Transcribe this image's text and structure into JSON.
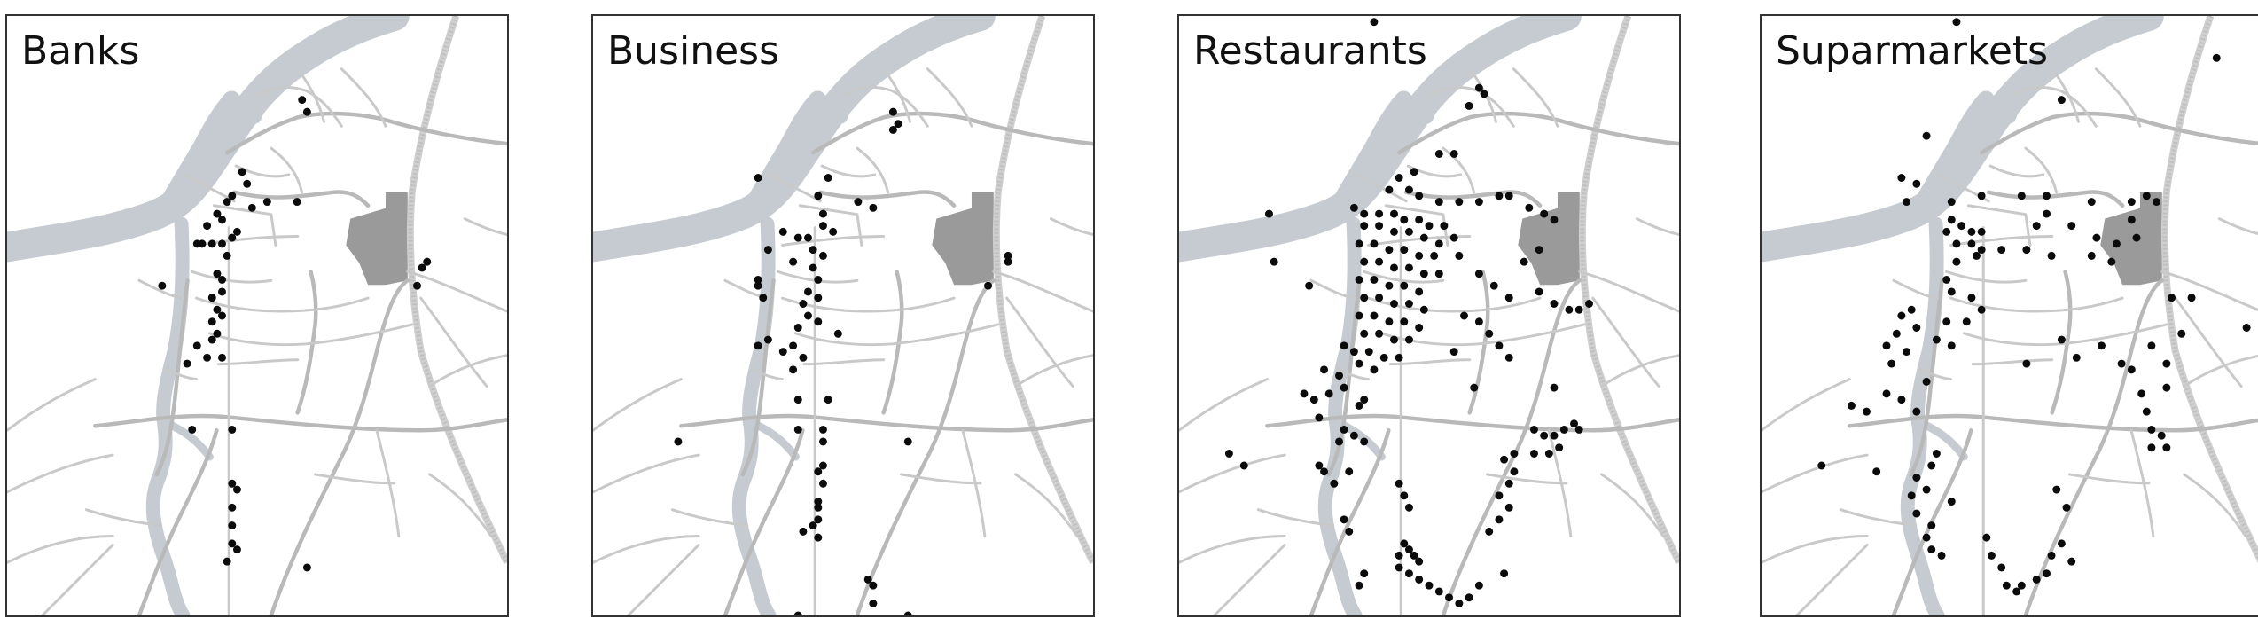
{
  "colors": {
    "river": "#c5cbd0",
    "road": "#c9c9c9",
    "district": "#9a9a9a",
    "poi": "#0b0b0b"
  },
  "panels": [
    {
      "title": "Banks",
      "points": [
        [
          0.59,
          0.14
        ],
        [
          0.6,
          0.16
        ],
        [
          0.47,
          0.26
        ],
        [
          0.48,
          0.28
        ],
        [
          0.45,
          0.3
        ],
        [
          0.44,
          0.31
        ],
        [
          0.42,
          0.33
        ],
        [
          0.43,
          0.34
        ],
        [
          0.4,
          0.35
        ],
        [
          0.38,
          0.38
        ],
        [
          0.39,
          0.38
        ],
        [
          0.41,
          0.38
        ],
        [
          0.43,
          0.38
        ],
        [
          0.45,
          0.37
        ],
        [
          0.46,
          0.36
        ],
        [
          0.44,
          0.4
        ],
        [
          0.42,
          0.43
        ],
        [
          0.43,
          0.44
        ],
        [
          0.41,
          0.47
        ],
        [
          0.43,
          0.46
        ],
        [
          0.42,
          0.49
        ],
        [
          0.41,
          0.51
        ],
        [
          0.43,
          0.5
        ],
        [
          0.42,
          0.53
        ],
        [
          0.41,
          0.54
        ],
        [
          0.38,
          0.55
        ],
        [
          0.4,
          0.57
        ],
        [
          0.43,
          0.57
        ],
        [
          0.36,
          0.58
        ],
        [
          0.31,
          0.45
        ],
        [
          0.49,
          0.32
        ],
        [
          0.52,
          0.31
        ],
        [
          0.58,
          0.31
        ],
        [
          0.84,
          0.41
        ],
        [
          0.82,
          0.45
        ],
        [
          0.83,
          0.42
        ],
        [
          0.37,
          0.69
        ],
        [
          0.45,
          0.69
        ],
        [
          0.45,
          0.78
        ],
        [
          0.46,
          0.79
        ],
        [
          0.45,
          0.82
        ],
        [
          0.45,
          0.85
        ],
        [
          0.45,
          0.88
        ],
        [
          0.46,
          0.89
        ],
        [
          0.44,
          0.91
        ],
        [
          0.6,
          0.92
        ]
      ]
    },
    {
      "title": "Business",
      "points": [
        [
          0.6,
          0.16
        ],
        [
          0.61,
          0.18
        ],
        [
          0.6,
          0.19
        ],
        [
          0.33,
          0.27
        ],
        [
          0.47,
          0.27
        ],
        [
          0.45,
          0.3
        ],
        [
          0.46,
          0.33
        ],
        [
          0.41,
          0.37
        ],
        [
          0.43,
          0.37
        ],
        [
          0.46,
          0.35
        ],
        [
          0.48,
          0.36
        ],
        [
          0.44,
          0.39
        ],
        [
          0.46,
          0.4
        ],
        [
          0.44,
          0.42
        ],
        [
          0.45,
          0.44
        ],
        [
          0.43,
          0.46
        ],
        [
          0.45,
          0.47
        ],
        [
          0.42,
          0.48
        ],
        [
          0.43,
          0.5
        ],
        [
          0.45,
          0.51
        ],
        [
          0.41,
          0.52
        ],
        [
          0.4,
          0.55
        ],
        [
          0.38,
          0.56
        ],
        [
          0.35,
          0.54
        ],
        [
          0.38,
          0.36
        ],
        [
          0.35,
          0.39
        ],
        [
          0.33,
          0.44
        ],
        [
          0.33,
          0.45
        ],
        [
          0.34,
          0.47
        ],
        [
          0.4,
          0.41
        ],
        [
          0.53,
          0.31
        ],
        [
          0.56,
          0.32
        ],
        [
          0.49,
          0.53
        ],
        [
          0.42,
          0.57
        ],
        [
          0.4,
          0.59
        ],
        [
          0.33,
          0.55
        ],
        [
          0.41,
          0.64
        ],
        [
          0.47,
          0.64
        ],
        [
          0.41,
          0.69
        ],
        [
          0.46,
          0.69
        ],
        [
          0.46,
          0.71
        ],
        [
          0.46,
          0.75
        ],
        [
          0.45,
          0.76
        ],
        [
          0.46,
          0.78
        ],
        [
          0.45,
          0.81
        ],
        [
          0.45,
          0.82
        ],
        [
          0.45,
          0.84
        ],
        [
          0.44,
          0.85
        ],
        [
          0.45,
          0.87
        ],
        [
          0.42,
          0.86
        ],
        [
          0.17,
          0.71
        ],
        [
          0.63,
          0.71
        ],
        [
          0.55,
          0.94
        ],
        [
          0.56,
          0.95
        ],
        [
          0.56,
          0.98
        ],
        [
          0.63,
          1.0
        ],
        [
          0.41,
          1.0
        ],
        [
          0.83,
          0.4
        ],
        [
          0.83,
          0.41
        ],
        [
          0.79,
          0.45
        ]
      ]
    },
    {
      "title": "Restaurants",
      "points": [
        [
          0.39,
          0.01
        ],
        [
          0.6,
          0.12
        ],
        [
          0.61,
          0.13
        ],
        [
          0.58,
          0.15
        ],
        [
          0.55,
          0.23
        ],
        [
          0.52,
          0.23
        ],
        [
          0.47,
          0.26
        ],
        [
          0.44,
          0.27
        ],
        [
          0.42,
          0.29
        ],
        [
          0.46,
          0.29
        ],
        [
          0.48,
          0.3
        ],
        [
          0.52,
          0.31
        ],
        [
          0.56,
          0.31
        ],
        [
          0.6,
          0.31
        ],
        [
          0.64,
          0.3
        ],
        [
          0.66,
          0.3
        ],
        [
          0.7,
          0.32
        ],
        [
          0.73,
          0.33
        ],
        [
          0.75,
          0.34
        ],
        [
          0.35,
          0.32
        ],
        [
          0.37,
          0.33
        ],
        [
          0.4,
          0.33
        ],
        [
          0.43,
          0.33
        ],
        [
          0.45,
          0.34
        ],
        [
          0.48,
          0.34
        ],
        [
          0.5,
          0.35
        ],
        [
          0.53,
          0.35
        ],
        [
          0.37,
          0.35
        ],
        [
          0.4,
          0.35
        ],
        [
          0.43,
          0.36
        ],
        [
          0.46,
          0.36
        ],
        [
          0.49,
          0.37
        ],
        [
          0.52,
          0.38
        ],
        [
          0.55,
          0.37
        ],
        [
          0.36,
          0.38
        ],
        [
          0.39,
          0.38
        ],
        [
          0.42,
          0.39
        ],
        [
          0.45,
          0.39
        ],
        [
          0.48,
          0.4
        ],
        [
          0.51,
          0.4
        ],
        [
          0.37,
          0.41
        ],
        [
          0.4,
          0.41
        ],
        [
          0.43,
          0.42
        ],
        [
          0.46,
          0.42
        ],
        [
          0.49,
          0.43
        ],
        [
          0.52,
          0.43
        ],
        [
          0.36,
          0.44
        ],
        [
          0.39,
          0.44
        ],
        [
          0.42,
          0.45
        ],
        [
          0.45,
          0.45
        ],
        [
          0.48,
          0.46
        ],
        [
          0.37,
          0.47
        ],
        [
          0.4,
          0.47
        ],
        [
          0.43,
          0.48
        ],
        [
          0.46,
          0.48
        ],
        [
          0.49,
          0.49
        ],
        [
          0.36,
          0.5
        ],
        [
          0.39,
          0.5
        ],
        [
          0.42,
          0.51
        ],
        [
          0.45,
          0.51
        ],
        [
          0.48,
          0.52
        ],
        [
          0.37,
          0.53
        ],
        [
          0.4,
          0.53
        ],
        [
          0.43,
          0.54
        ],
        [
          0.46,
          0.54
        ],
        [
          0.35,
          0.56
        ],
        [
          0.38,
          0.56
        ],
        [
          0.41,
          0.57
        ],
        [
          0.44,
          0.57
        ],
        [
          0.36,
          0.58
        ],
        [
          0.39,
          0.59
        ],
        [
          0.33,
          0.55
        ],
        [
          0.32,
          0.6
        ],
        [
          0.29,
          0.59
        ],
        [
          0.18,
          0.33
        ],
        [
          0.19,
          0.41
        ],
        [
          0.26,
          0.45
        ],
        [
          0.56,
          0.4
        ],
        [
          0.6,
          0.43
        ],
        [
          0.63,
          0.45
        ],
        [
          0.66,
          0.47
        ],
        [
          0.72,
          0.46
        ],
        [
          0.75,
          0.48
        ],
        [
          0.78,
          0.49
        ],
        [
          0.8,
          0.49
        ],
        [
          0.82,
          0.48
        ],
        [
          0.69,
          0.41
        ],
        [
          0.72,
          0.39
        ],
        [
          0.57,
          0.5
        ],
        [
          0.6,
          0.51
        ],
        [
          0.62,
          0.53
        ],
        [
          0.64,
          0.55
        ],
        [
          0.66,
          0.57
        ],
        [
          0.55,
          0.56
        ],
        [
          0.25,
          0.63
        ],
        [
          0.27,
          0.64
        ],
        [
          0.3,
          0.63
        ],
        [
          0.33,
          0.62
        ],
        [
          0.28,
          0.67
        ],
        [
          0.32,
          0.71
        ],
        [
          0.35,
          0.7
        ],
        [
          0.33,
          0.69
        ],
        [
          0.36,
          0.65
        ],
        [
          0.37,
          0.64
        ],
        [
          0.34,
          0.76
        ],
        [
          0.29,
          0.76
        ],
        [
          0.28,
          0.75
        ],
        [
          0.31,
          0.78
        ],
        [
          0.33,
          0.84
        ],
        [
          0.34,
          0.86
        ],
        [
          0.1,
          0.73
        ],
        [
          0.13,
          0.75
        ],
        [
          0.37,
          0.71
        ],
        [
          0.44,
          0.78
        ],
        [
          0.45,
          0.8
        ],
        [
          0.46,
          0.82
        ],
        [
          0.45,
          0.88
        ],
        [
          0.46,
          0.89
        ],
        [
          0.44,
          0.9
        ],
        [
          0.47,
          0.9
        ],
        [
          0.48,
          0.91
        ],
        [
          0.44,
          0.92
        ],
        [
          0.46,
          0.93
        ],
        [
          0.48,
          0.94
        ],
        [
          0.5,
          0.95
        ],
        [
          0.52,
          0.96
        ],
        [
          0.54,
          0.97
        ],
        [
          0.56,
          0.98
        ],
        [
          0.58,
          0.97
        ],
        [
          0.6,
          0.95
        ],
        [
          0.65,
          0.93
        ],
        [
          0.37,
          0.93
        ],
        [
          0.36,
          0.95
        ],
        [
          0.71,
          0.69
        ],
        [
          0.73,
          0.7
        ],
        [
          0.75,
          0.7
        ],
        [
          0.77,
          0.69
        ],
        [
          0.79,
          0.68
        ],
        [
          0.8,
          0.69
        ],
        [
          0.76,
          0.72
        ],
        [
          0.74,
          0.73
        ],
        [
          0.71,
          0.73
        ],
        [
          0.67,
          0.73
        ],
        [
          0.65,
          0.74
        ],
        [
          0.67,
          0.76
        ],
        [
          0.66,
          0.78
        ],
        [
          0.64,
          0.8
        ],
        [
          0.66,
          0.82
        ],
        [
          0.64,
          0.84
        ],
        [
          0.62,
          0.86
        ],
        [
          0.75,
          0.62
        ],
        [
          0.59,
          0.62
        ]
      ]
    },
    {
      "title": "Suparmarkets",
      "points": [
        [
          0.39,
          0.01
        ],
        [
          0.91,
          0.07
        ],
        [
          0.6,
          0.14
        ],
        [
          0.33,
          0.2
        ],
        [
          0.28,
          0.27
        ],
        [
          0.31,
          0.28
        ],
        [
          0.29,
          0.31
        ],
        [
          0.38,
          0.31
        ],
        [
          0.44,
          0.3
        ],
        [
          0.52,
          0.3
        ],
        [
          0.57,
          0.3
        ],
        [
          0.66,
          0.31
        ],
        [
          0.74,
          0.31
        ],
        [
          0.77,
          0.3
        ],
        [
          0.79,
          0.31
        ],
        [
          0.74,
          0.34
        ],
        [
          0.75,
          0.37
        ],
        [
          0.38,
          0.34
        ],
        [
          0.4,
          0.35
        ],
        [
          0.42,
          0.36
        ],
        [
          0.44,
          0.36
        ],
        [
          0.37,
          0.36
        ],
        [
          0.39,
          0.38
        ],
        [
          0.42,
          0.38
        ],
        [
          0.44,
          0.39
        ],
        [
          0.39,
          0.41
        ],
        [
          0.43,
          0.4
        ],
        [
          0.48,
          0.39
        ],
        [
          0.53,
          0.39
        ],
        [
          0.58,
          0.4
        ],
        [
          0.66,
          0.4
        ],
        [
          0.7,
          0.41
        ],
        [
          0.57,
          0.33
        ],
        [
          0.55,
          0.35
        ],
        [
          0.62,
          0.35
        ],
        [
          0.67,
          0.37
        ],
        [
          0.71,
          0.38
        ],
        [
          0.37,
          0.44
        ],
        [
          0.38,
          0.46
        ],
        [
          0.42,
          0.47
        ],
        [
          0.44,
          0.49
        ],
        [
          0.41,
          0.51
        ],
        [
          0.37,
          0.51
        ],
        [
          0.3,
          0.49
        ],
        [
          0.28,
          0.5
        ],
        [
          0.27,
          0.53
        ],
        [
          0.25,
          0.55
        ],
        [
          0.26,
          0.58
        ],
        [
          0.29,
          0.56
        ],
        [
          0.31,
          0.52
        ],
        [
          0.35,
          0.54
        ],
        [
          0.38,
          0.55
        ],
        [
          0.33,
          0.61
        ],
        [
          0.25,
          0.63
        ],
        [
          0.18,
          0.65
        ],
        [
          0.21,
          0.66
        ],
        [
          0.28,
          0.64
        ],
        [
          0.31,
          0.66
        ],
        [
          0.53,
          0.58
        ],
        [
          0.6,
          0.54
        ],
        [
          0.63,
          0.57
        ],
        [
          0.68,
          0.55
        ],
        [
          0.72,
          0.58
        ],
        [
          0.78,
          0.55
        ],
        [
          0.82,
          0.47
        ],
        [
          0.86,
          0.47
        ],
        [
          0.84,
          0.53
        ],
        [
          0.81,
          0.58
        ],
        [
          0.74,
          0.59
        ],
        [
          0.81,
          0.62
        ],
        [
          0.76,
          0.63
        ],
        [
          0.77,
          0.66
        ],
        [
          0.78,
          0.69
        ],
        [
          0.78,
          0.72
        ],
        [
          0.8,
          0.7
        ],
        [
          0.81,
          0.72
        ],
        [
          0.97,
          0.52
        ],
        [
          0.12,
          0.75
        ],
        [
          0.23,
          0.76
        ],
        [
          0.35,
          0.73
        ],
        [
          0.34,
          0.75
        ],
        [
          0.31,
          0.77
        ],
        [
          0.33,
          0.79
        ],
        [
          0.3,
          0.8
        ],
        [
          0.31,
          0.83
        ],
        [
          0.34,
          0.85
        ],
        [
          0.33,
          0.87
        ],
        [
          0.34,
          0.89
        ],
        [
          0.36,
          0.9
        ],
        [
          0.38,
          0.81
        ],
        [
          0.45,
          0.87
        ],
        [
          0.46,
          0.9
        ],
        [
          0.48,
          0.92
        ],
        [
          0.49,
          0.95
        ],
        [
          0.51,
          0.96
        ],
        [
          0.52,
          0.95
        ],
        [
          0.55,
          0.94
        ],
        [
          0.57,
          0.93
        ],
        [
          0.58,
          0.9
        ],
        [
          0.61,
          0.82
        ],
        [
          0.6,
          0.88
        ],
        [
          0.62,
          0.91
        ],
        [
          0.59,
          0.79
        ]
      ]
    }
  ]
}
